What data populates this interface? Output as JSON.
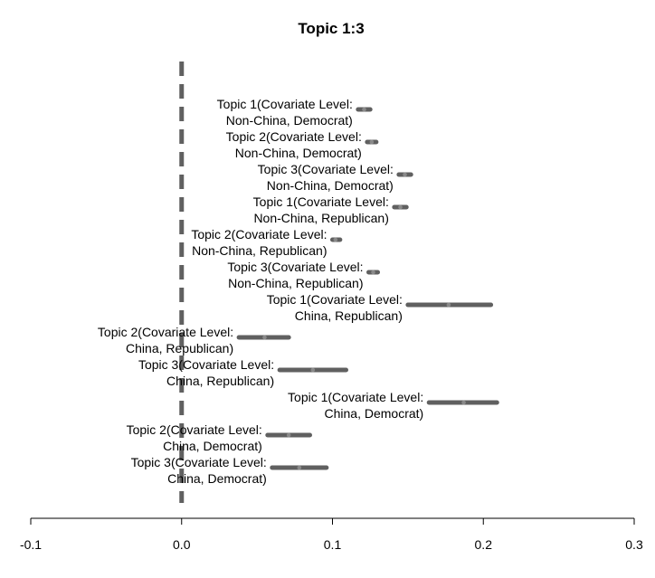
{
  "chart_data": {
    "type": "forest",
    "title": "Topic 1:3",
    "xlabel": "",
    "ylabel": "",
    "xlim": [
      -0.1,
      0.3
    ],
    "x_ticks": [
      "-0.1",
      "0.0",
      "0.1",
      "0.2",
      "0.3"
    ],
    "x_tick_values": [
      -0.1,
      0.0,
      0.1,
      0.2,
      0.3
    ],
    "reference_line": 0.0,
    "grid": false,
    "legend": "none",
    "color": "#606060",
    "points": [
      {
        "label_line1": "Topic 1(Covariate Level:",
        "label_line2": "Non-China, Democrat)",
        "estimate": 0.121,
        "lower": 0.117,
        "upper": 0.125
      },
      {
        "label_line1": "Topic 2(Covariate Level:",
        "label_line2": "Non-China, Democrat)",
        "estimate": 0.126,
        "lower": 0.123,
        "upper": 0.129
      },
      {
        "label_line1": "Topic 3(Covariate Level:",
        "label_line2": "Non-China, Democrat)",
        "estimate": 0.148,
        "lower": 0.144,
        "upper": 0.152
      },
      {
        "label_line1": "Topic 1(Covariate Level:",
        "label_line2": "Non-China, Republican)",
        "estimate": 0.145,
        "lower": 0.141,
        "upper": 0.149
      },
      {
        "label_line1": "Topic 2(Covariate Level:",
        "label_line2": "Non-China, Republican)",
        "estimate": 0.102,
        "lower": 0.1,
        "upper": 0.105
      },
      {
        "label_line1": "Topic 3(Covariate Level:",
        "label_line2": "Non-China, Republican)",
        "estimate": 0.127,
        "lower": 0.124,
        "upper": 0.13
      },
      {
        "label_line1": "Topic 1(Covariate Level:",
        "label_line2": "China, Republican)",
        "estimate": 0.177,
        "lower": 0.15,
        "upper": 0.205
      },
      {
        "label_line1": "Topic 2(Covariate Level:",
        "label_line2": "China, Republican)",
        "estimate": 0.055,
        "lower": 0.038,
        "upper": 0.071
      },
      {
        "label_line1": "Topic 3(Covariate Level:",
        "label_line2": "China, Republican)",
        "estimate": 0.087,
        "lower": 0.065,
        "upper": 0.109
      },
      {
        "label_line1": "Topic 1(Covariate Level:",
        "label_line2": "China, Democrat)",
        "estimate": 0.187,
        "lower": 0.164,
        "upper": 0.209
      },
      {
        "label_line1": "Topic 2(Covariate Level:",
        "label_line2": "China, Democrat)",
        "estimate": 0.071,
        "lower": 0.057,
        "upper": 0.085
      },
      {
        "label_line1": "Topic 3(Covariate Level:",
        "label_line2": "China, Democrat)",
        "estimate": 0.078,
        "lower": 0.06,
        "upper": 0.096
      }
    ]
  }
}
